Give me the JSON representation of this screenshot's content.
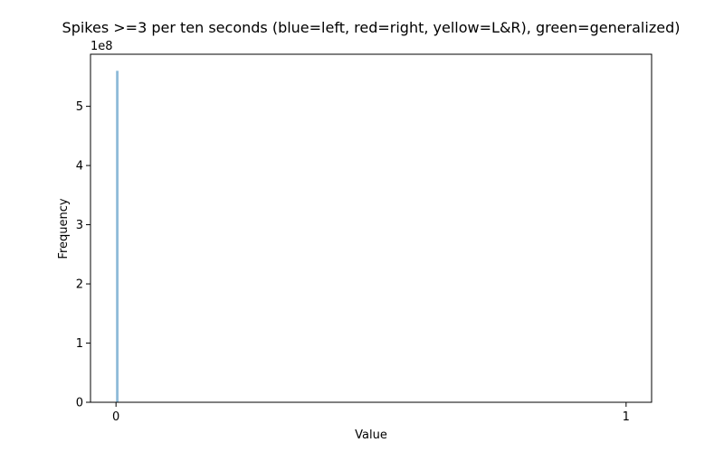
{
  "chart_data": {
    "type": "bar",
    "title": "Spikes >=3 per ten seconds (blue=left, red=right, yellow=L&R), green=generalized)",
    "xlabel": "Value",
    "ylabel": "Frequency",
    "y_offset_label": "1e8",
    "xlim": [
      -0.05,
      1.05
    ],
    "ylim": [
      0,
      5.88
    ],
    "x_ticks": [
      0,
      1
    ],
    "x_tick_labels": [
      "0",
      "1"
    ],
    "y_ticks": [
      0,
      1,
      2,
      3,
      4,
      5
    ],
    "y_tick_labels": [
      "0",
      "1",
      "2",
      "3",
      "4",
      "5"
    ],
    "grid": false,
    "series": [
      {
        "color": "#1f77b4",
        "alpha": 0.5,
        "bins": [
          {
            "x_start": 0.0,
            "x_end": 0.005,
            "value": 5.6
          }
        ]
      }
    ]
  }
}
